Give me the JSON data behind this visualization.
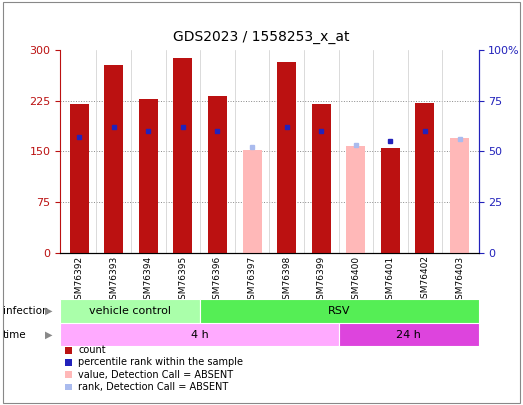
{
  "title": "GDS2023 / 1558253_x_at",
  "samples": [
    "GSM76392",
    "GSM76393",
    "GSM76394",
    "GSM76395",
    "GSM76396",
    "GSM76397",
    "GSM76398",
    "GSM76399",
    "GSM76400",
    "GSM76401",
    "GSM76402",
    "GSM76403"
  ],
  "count_values": [
    220,
    278,
    228,
    288,
    232,
    null,
    282,
    220,
    null,
    155,
    222,
    null
  ],
  "count_absent_values": [
    null,
    null,
    null,
    null,
    null,
    152,
    null,
    null,
    158,
    null,
    null,
    170
  ],
  "rank_values": [
    57,
    62,
    60,
    62,
    60,
    null,
    62,
    60,
    null,
    55,
    60,
    null
  ],
  "rank_absent_values": [
    null,
    null,
    null,
    null,
    null,
    52,
    null,
    null,
    53,
    null,
    null,
    56
  ],
  "ylim_left": [
    0,
    300
  ],
  "ylim_right": [
    0,
    100
  ],
  "yticks_left": [
    0,
    75,
    150,
    225,
    300
  ],
  "ytick_labels_left": [
    "0",
    "75",
    "150",
    "225",
    "300"
  ],
  "yticks_right": [
    0,
    25,
    50,
    75,
    100
  ],
  "ytick_labels_right": [
    "0",
    "25",
    "50",
    "75",
    "100%"
  ],
  "count_color": "#BB1111",
  "count_absent_color": "#FFB8B8",
  "rank_color": "#2222BB",
  "rank_absent_color": "#AABBEE",
  "infection_vc_label": "vehicle control",
  "infection_rsv_label": "RSV",
  "infection_vc_color": "#AAFFAA",
  "infection_rsv_color": "#55EE55",
  "time_4h_label": "4 h",
  "time_24h_label": "24 h",
  "time_4h_color": "#FFAAFF",
  "time_24h_color": "#DD44DD",
  "infection_label": "infection",
  "time_label": "time",
  "legend_items": [
    "count",
    "percentile rank within the sample",
    "value, Detection Call = ABSENT",
    "rank, Detection Call = ABSENT"
  ],
  "legend_colors": [
    "#BB1111",
    "#2222BB",
    "#FFB8B8",
    "#AABBEE"
  ],
  "vc_count": 4,
  "4h_count": 8,
  "total_count": 12
}
